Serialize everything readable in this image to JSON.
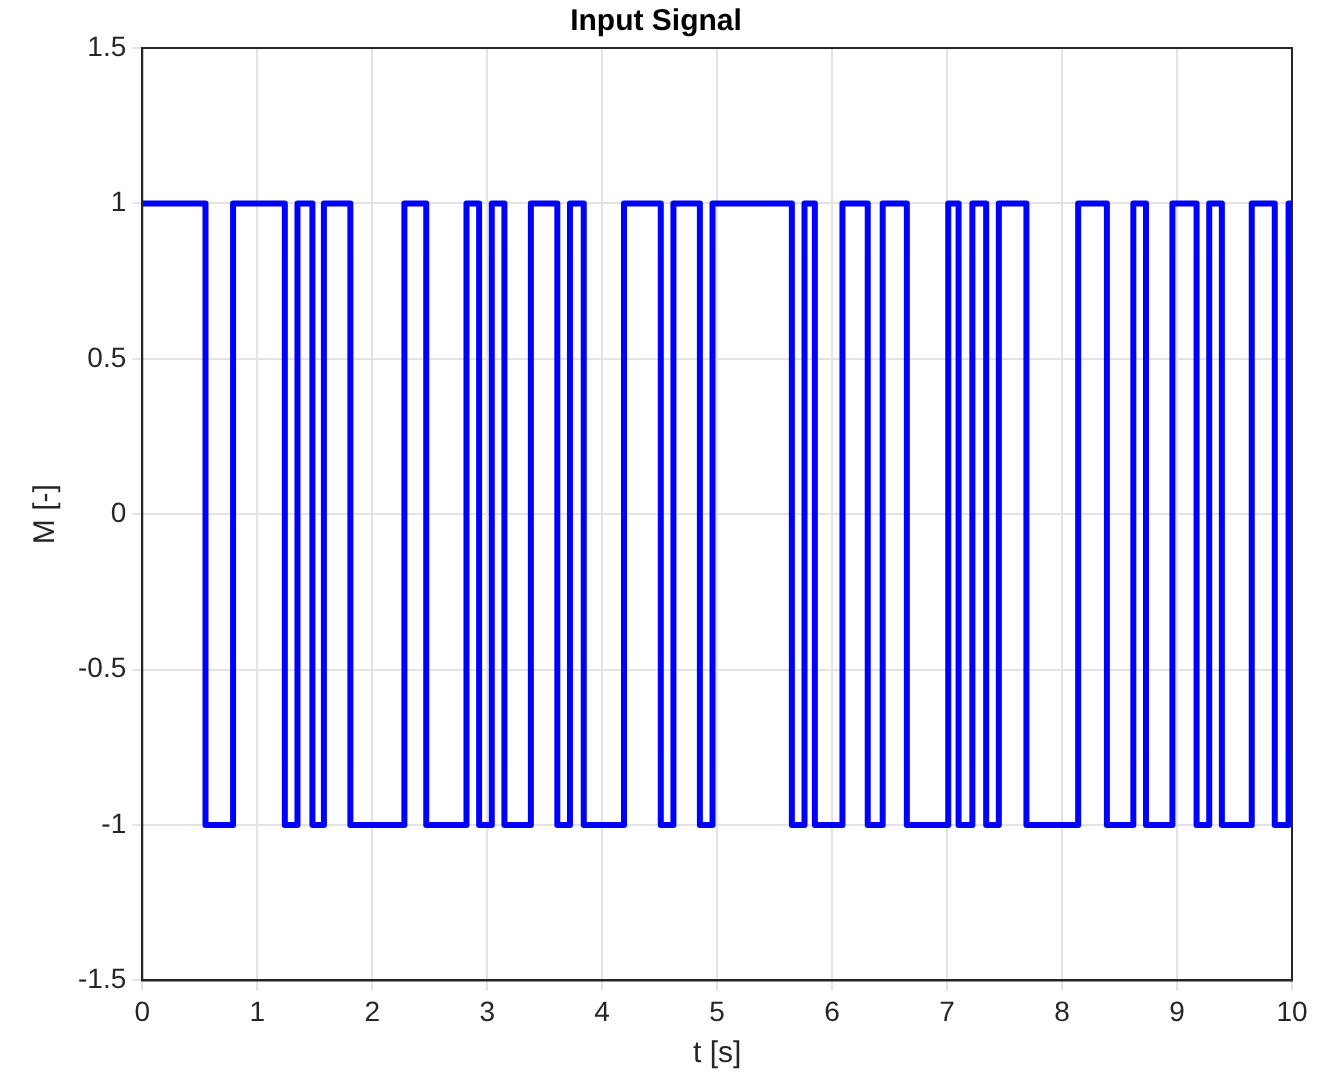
{
  "chart_data": {
    "type": "step",
    "title": "Input Signal",
    "xlabel": "t [s]",
    "ylabel": "M [-]",
    "x": [
      0,
      0.55,
      0.79,
      1.24,
      1.35,
      1.48,
      1.58,
      1.81,
      2.28,
      2.47,
      2.82,
      2.93,
      3.04,
      3.15,
      3.38,
      3.61,
      3.72,
      3.84,
      4.19,
      4.51,
      4.62,
      4.85,
      4.96,
      5.65,
      5.76,
      5.85,
      6.09,
      6.31,
      6.44,
      6.65,
      7.01,
      7.1,
      7.22,
      7.34,
      7.45,
      7.69,
      8.14,
      8.39,
      8.62,
      8.73,
      8.96,
      9.17,
      9.28,
      9.39,
      9.65,
      9.85,
      9.97,
      10
    ],
    "series": [
      {
        "color": "#0000ff",
        "values": [
          1,
          -1,
          1,
          -1,
          1,
          -1,
          1,
          -1,
          1,
          -1,
          1,
          -1,
          1,
          -1,
          1,
          -1,
          1,
          -1,
          1,
          -1,
          1,
          -1,
          1,
          -1,
          1,
          -1,
          1,
          -1,
          1,
          -1,
          1,
          -1,
          1,
          -1,
          1,
          -1,
          1,
          -1,
          1,
          -1,
          1,
          -1,
          1,
          -1,
          1,
          -1,
          1,
          1
        ]
      }
    ],
    "xlim": [
      0,
      10
    ],
    "xticks": [
      0,
      1,
      2,
      3,
      4,
      5,
      6,
      7,
      8,
      9,
      10
    ],
    "ylim": [
      -1.5,
      1.5
    ],
    "yticks": [
      -1.5,
      -1,
      -0.5,
      0,
      0.5,
      1,
      1.5
    ],
    "grid": true,
    "legend": false,
    "marker": "none",
    "line_style": "solid"
  }
}
